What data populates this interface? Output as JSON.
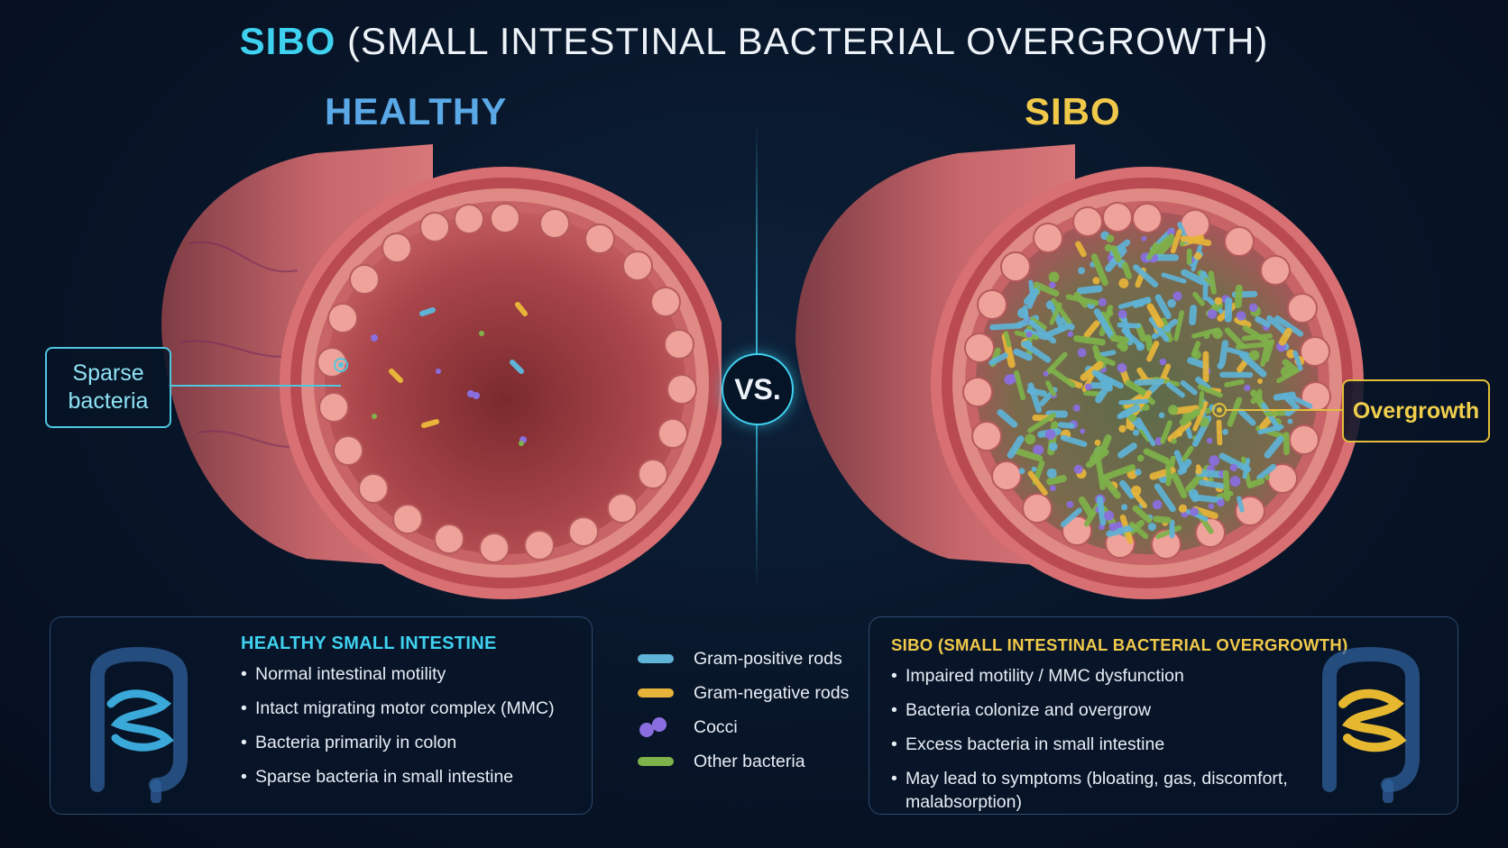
{
  "title": {
    "accent": "SIBO",
    "rest": "(SMALL INTESTINAL BACTERIAL OVERGROWTH)"
  },
  "healthy_heading": "HEALTHY",
  "sibo_heading": "SIBO",
  "vs_label": "VS.",
  "callouts": {
    "healthy": "Sparse bacteria",
    "sibo": "Overgrowth"
  },
  "healthy_panel": {
    "heading": "HEALTHY SMALL INTESTINE",
    "items": [
      "Normal intestinal motility",
      "Intact migrating motor complex (MMC)",
      "Bacteria primarily in colon",
      "Sparse bacteria in small intestine"
    ]
  },
  "sibo_panel": {
    "heading": "SIBO (SMALL INTESTINAL BACTERIAL OVERGROWTH)",
    "items": [
      "Impaired motility / MMC dysfunction",
      "Bacteria colonize and overgrow",
      "Excess bacteria in small intestine",
      "May lead to symptoms (bloating, gas, discomfort, malabsorption)"
    ]
  },
  "legend": [
    {
      "label": "Gram-positive rods",
      "icon": "blue-rod-icon",
      "color": "#5fb3d6"
    },
    {
      "label": "Gram-negative rods",
      "icon": "yellow-rod-icon",
      "color": "#e8b53a"
    },
    {
      "label": "Cocci",
      "icon": "purple-cocci-icon",
      "color": "#8a6ee0"
    },
    {
      "label": "Other bacteria",
      "icon": "green-rod-icon",
      "color": "#7fb24a"
    }
  ],
  "colors": {
    "healthy_accent": "#5aa9e6",
    "sibo_accent": "#f1c94a",
    "cyan": "#3fd2f0",
    "tissue": "#c9595d"
  }
}
